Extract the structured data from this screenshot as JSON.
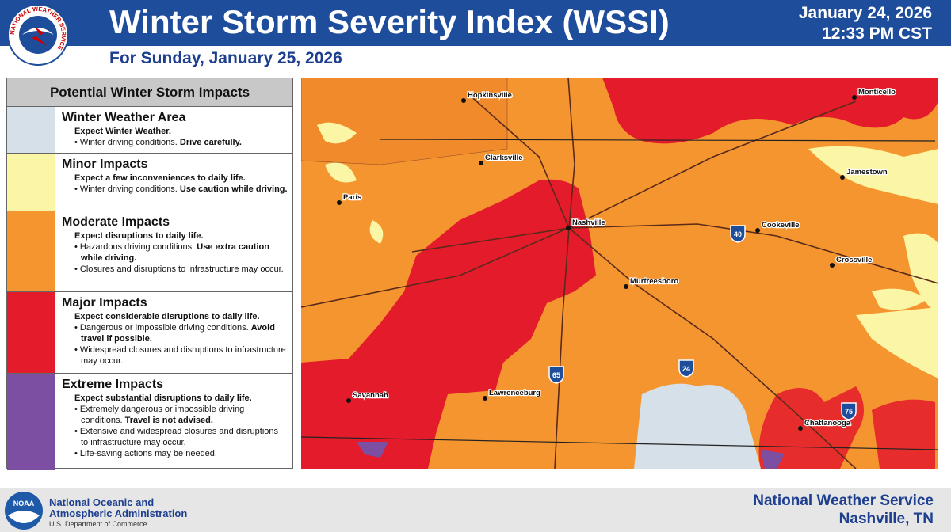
{
  "header": {
    "logo_text": "NATIONAL WEATHER SERVICE",
    "title": "Winter Storm Severity Index (WSSI)",
    "date": "January 24, 2026",
    "time": "12:33 PM CST",
    "subtitle": "For Sunday, January 25, 2026"
  },
  "legend": {
    "title": "Potential Winter Storm Impacts",
    "items": [
      {
        "name": "Winter Weather Area",
        "color": "#d6e0e8",
        "headline": "Expect Winter Weather.",
        "bullets": [
          {
            "text": "Winter driving conditions.",
            "emphasis": "Drive carefully."
          }
        ]
      },
      {
        "name": "Minor Impacts",
        "color": "#fbf5a6",
        "headline": "Expect a few inconveniences to daily life.",
        "bullets": [
          {
            "text": "Winter driving conditions.",
            "emphasis": "Use caution while driving."
          }
        ]
      },
      {
        "name": "Moderate Impacts",
        "color": "#f5952f",
        "headline": "Expect disruptions to daily life.",
        "bullets": [
          {
            "text": "Hazardous driving conditions.",
            "emphasis": "Use extra caution while driving."
          },
          {
            "text": "Closures and disruptions to infrastructure may occur."
          }
        ]
      },
      {
        "name": "Major Impacts",
        "color": "#e31b2b",
        "headline": "Expect considerable disruptions to daily life.",
        "bullets": [
          {
            "text": "Dangerous or impossible driving conditions.",
            "emphasis": "Avoid travel if possible."
          },
          {
            "text": "Widespread closures and disruptions to infrastructure may occur."
          }
        ]
      },
      {
        "name": "Extreme Impacts",
        "color": "#7d4fa3",
        "headline": "Expect substantial disruptions to daily life.",
        "bullets": [
          {
            "text": "Extremely dangerous or impossible driving conditions.",
            "emphasis": "Travel is not advised."
          },
          {
            "text": "Extensive and widespread closures and disruptions to infrastructure may occur."
          },
          {
            "text": "Life-saving actions may be needed."
          }
        ]
      }
    ]
  },
  "map": {
    "cities": [
      "Hopkinsville",
      "Monticello",
      "Clarksville",
      "Jamestown",
      "Paris",
      "Nashville",
      "Cookeville",
      "Crossville",
      "Murfreesboro",
      "Savannah",
      "Lawrenceburg",
      "Chattanooga"
    ],
    "interstates": [
      "40",
      "65",
      "24",
      "75"
    ]
  },
  "footer": {
    "noaa_logo": "NOAA",
    "agency_line1": "National Oceanic and",
    "agency_line2": "Atmospheric Administration",
    "department": "U.S. Department of Commerce",
    "office_line1": "National Weather Service",
    "office_line2": "Nashville, TN"
  }
}
